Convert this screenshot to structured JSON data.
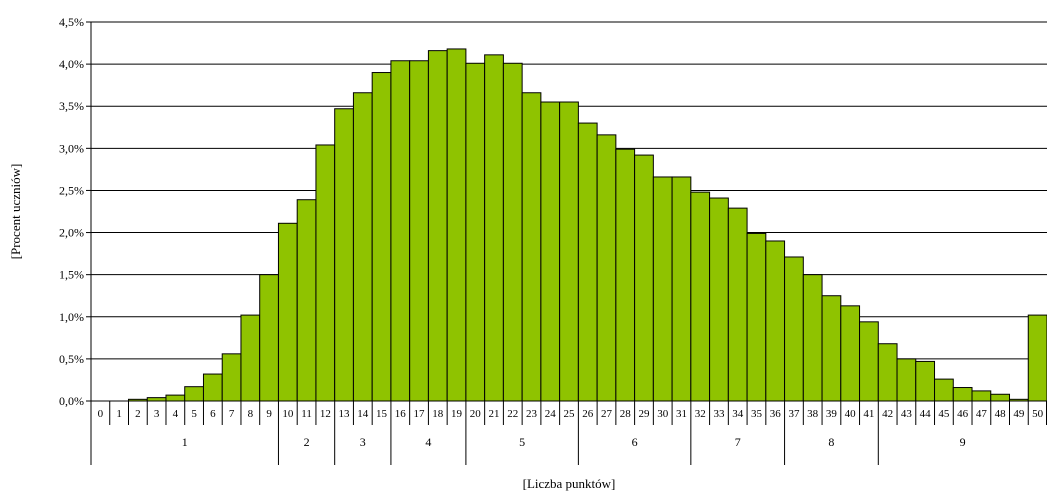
{
  "chart_data": {
    "type": "bar",
    "xlabel": "[Liczba punktów]",
    "ylabel": "[Procent uczniów]",
    "ylim": [
      0,
      4.5
    ],
    "yticks": [
      0,
      0.5,
      1.0,
      1.5,
      2.0,
      2.5,
      3.0,
      3.5,
      4.0,
      4.5
    ],
    "ytick_labels": [
      "0,0%",
      "0,5%",
      "1,0%",
      "1,5%",
      "2,0%",
      "2,5%",
      "3,0%",
      "3,5%",
      "4,0%",
      "4,5%"
    ],
    "grid": true,
    "bar_color": "#8fc300",
    "categories": [
      "0",
      "1",
      "2",
      "3",
      "4",
      "5",
      "6",
      "7",
      "8",
      "9",
      "10",
      "11",
      "12",
      "13",
      "14",
      "15",
      "16",
      "17",
      "18",
      "19",
      "20",
      "21",
      "22",
      "23",
      "24",
      "25",
      "26",
      "27",
      "28",
      "29",
      "30",
      "31",
      "32",
      "33",
      "34",
      "35",
      "36",
      "37",
      "38",
      "39",
      "40",
      "41",
      "42",
      "43",
      "44",
      "45",
      "46",
      "47",
      "48",
      "49",
      "50"
    ],
    "values": [
      0.0,
      0.0,
      0.02,
      0.04,
      0.07,
      0.17,
      0.32,
      0.56,
      1.02,
      1.5,
      2.11,
      2.39,
      3.04,
      3.47,
      3.66,
      3.9,
      4.04,
      4.04,
      4.16,
      4.18,
      4.01,
      4.11,
      4.01,
      3.66,
      3.55,
      3.55,
      3.3,
      3.16,
      2.99,
      2.92,
      2.66,
      2.66,
      2.48,
      2.41,
      2.29,
      1.99,
      1.9,
      1.71,
      1.5,
      1.25,
      1.13,
      0.94,
      0.68,
      0.5,
      0.47,
      0.26,
      0.16,
      0.12,
      0.08,
      0.02,
      1.02
    ],
    "groups": [
      {
        "label": "1",
        "from": 0,
        "to": 9
      },
      {
        "label": "2",
        "from": 10,
        "to": 12
      },
      {
        "label": "3",
        "from": 13,
        "to": 15
      },
      {
        "label": "4",
        "from": 16,
        "to": 19
      },
      {
        "label": "5",
        "from": 20,
        "to": 25
      },
      {
        "label": "6",
        "from": 26,
        "to": 31
      },
      {
        "label": "7",
        "from": 32,
        "to": 36
      },
      {
        "label": "8",
        "from": 37,
        "to": 41
      },
      {
        "label": "9",
        "from": 42,
        "to": 50
      }
    ]
  }
}
